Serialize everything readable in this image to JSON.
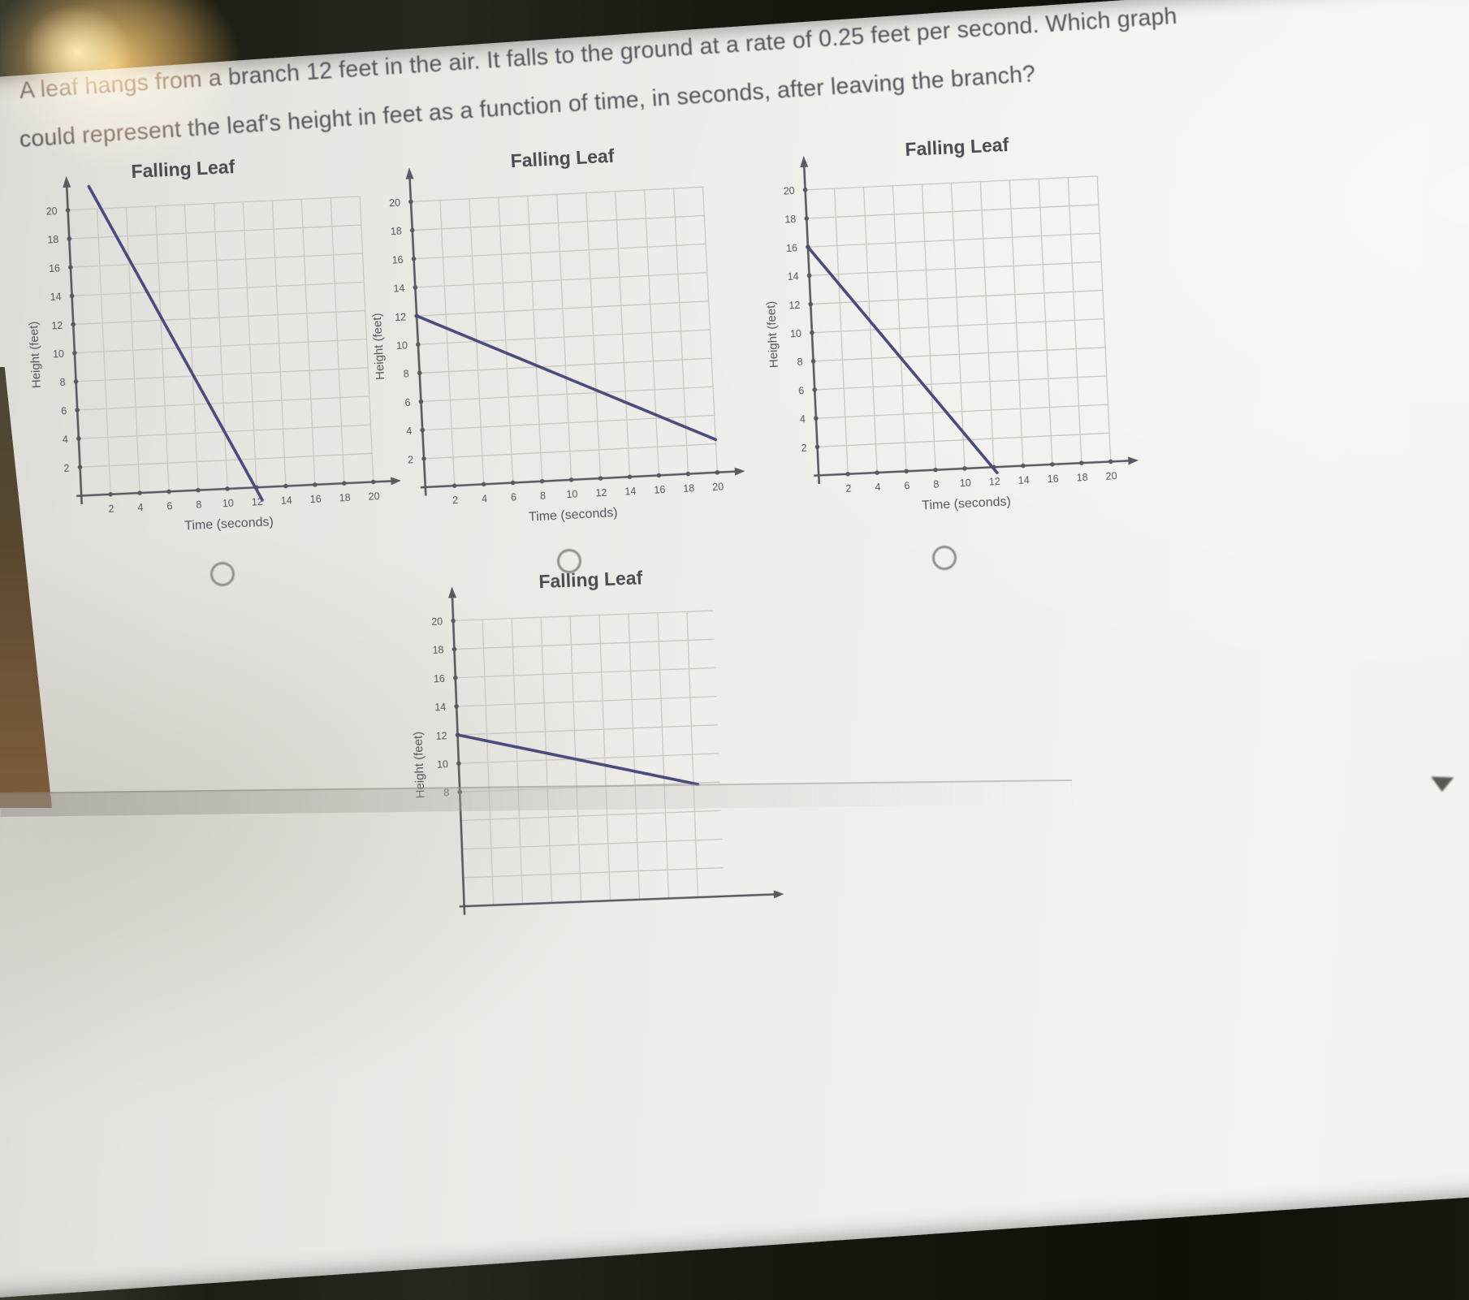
{
  "question": {
    "line1": "A leaf hangs from a branch 12 feet in the air. It falls to the ground at a rate of 0.25 feet per second. Which graph",
    "line2": "could represent the leaf's height in feet as a function of time, in seconds, after leaving the branch?"
  },
  "options": [
    {
      "id": "A",
      "selected": false
    },
    {
      "id": "B",
      "selected": false
    },
    {
      "id": "C",
      "selected": false
    }
  ],
  "icons": {
    "radio": "circle-outline",
    "cursor_mark": "small-dark-down-triangle"
  },
  "colors": {
    "plot_line": "#4a4a7c",
    "axis": "#5a595f",
    "grid": "#c9c8c0",
    "chart_text": "#57565c",
    "question_text": "#56535d",
    "radio_outline": "#90908a"
  },
  "chart_data": [
    {
      "type": "line",
      "title": "Falling Leaf",
      "xlabel": "Time (seconds)",
      "ylabel": "Height (feet)",
      "x_ticks": [
        2,
        4,
        6,
        8,
        10,
        12,
        14,
        16,
        18,
        20
      ],
      "y_ticks": [
        2,
        4,
        6,
        8,
        10,
        12,
        14,
        16,
        18,
        20
      ],
      "xlim": [
        0,
        21
      ],
      "ylim": [
        0,
        21
      ],
      "grid": true,
      "title_x": 8,
      "points": [
        [
          1.5,
          21.6
        ],
        [
          12.35,
          -0.9
        ]
      ],
      "note": "steep line entering from top of plot, crossing the time axis at about t = 12"
    },
    {
      "type": "line",
      "title": "Falling Leaf",
      "xlabel": "Time (seconds)",
      "ylabel": "Height (feet)",
      "x_ticks": [
        2,
        4,
        6,
        8,
        10,
        12,
        14,
        16,
        18,
        20
      ],
      "y_ticks": [
        2,
        4,
        6,
        8,
        10,
        12,
        14,
        16,
        18,
        20
      ],
      "xlim": [
        0,
        21
      ],
      "ylim": [
        0,
        21
      ],
      "grid": true,
      "title_x": 10.5,
      "points": [
        [
          0,
          12
        ],
        [
          20,
          2.3
        ]
      ],
      "note": "starts at height 12 and falls about 0.5 ft per second, reaching about 2 at t = 20"
    },
    {
      "type": "line",
      "title": "Falling Leaf",
      "xlabel": "Time (seconds)",
      "ylabel": "Height (feet)",
      "x_ticks": [
        2,
        4,
        6,
        8,
        10,
        12,
        14,
        16,
        18,
        20
      ],
      "y_ticks": [
        2,
        4,
        6,
        8,
        10,
        12,
        14,
        16,
        18,
        20
      ],
      "xlim": [
        0,
        21
      ],
      "ylim": [
        0,
        21
      ],
      "grid": true,
      "title_x": 10.5,
      "points": [
        [
          0,
          16
        ],
        [
          12.2,
          -0.4
        ]
      ],
      "note": "starts at height 16 and reaches the ground at about t = 12"
    },
    {
      "type": "line",
      "title": "Falling Leaf",
      "xlabel": "",
      "ylabel": "Height (feet)",
      "x_ticks": [],
      "y_ticks": [
        8,
        10,
        12,
        14,
        16,
        18,
        20
      ],
      "xlim": [
        0,
        21
      ],
      "ylim": [
        0,
        21
      ],
      "grid": true,
      "grid_xmax": 17.8,
      "title_x": 9.5,
      "points": [
        [
          0,
          12
        ],
        [
          16.3,
          7.9
        ]
      ],
      "note": "starts at height 12 and falls about 0.25 ft per second; bottom of this graph is cut off by the screenshot edge"
    }
  ]
}
